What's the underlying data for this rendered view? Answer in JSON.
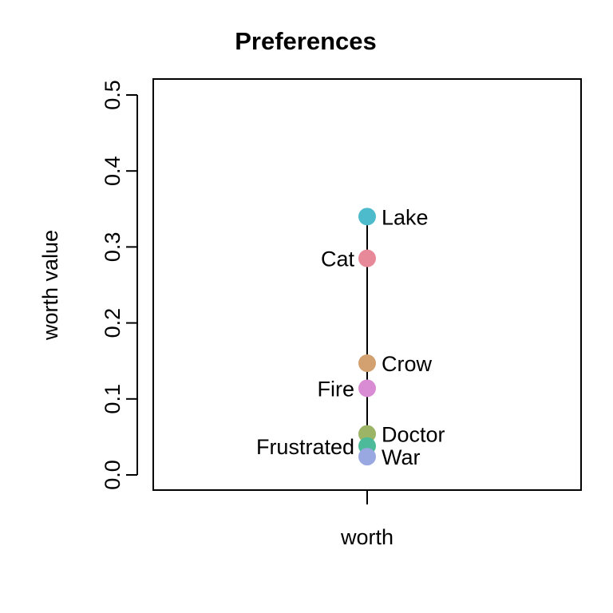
{
  "chart_data": {
    "type": "scatter",
    "title": "Preferences",
    "xlabel": "",
    "ylabel": "worth value",
    "categories": [
      "worth"
    ],
    "ylim": [
      0,
      0.5
    ],
    "yticks": [
      "0.0",
      "0.1",
      "0.2",
      "0.3",
      "0.4",
      "0.5"
    ],
    "grid": false,
    "legend": "none",
    "points": [
      {
        "label": "Lake",
        "value": 0.34,
        "color": "#4DBBCC",
        "side": "right"
      },
      {
        "label": "Cat",
        "value": 0.285,
        "color": "#E8899A",
        "side": "left"
      },
      {
        "label": "Crow",
        "value": 0.147,
        "color": "#D3A070",
        "side": "right"
      },
      {
        "label": "Fire",
        "value": 0.114,
        "color": "#D98CD3",
        "side": "left"
      },
      {
        "label": "Doctor",
        "value": 0.054,
        "color": "#9CB466",
        "side": "right"
      },
      {
        "label": "Frustrated",
        "value": 0.038,
        "color": "#4DBB9A",
        "side": "left"
      },
      {
        "label": "War",
        "value": 0.024,
        "color": "#99A8E0",
        "side": "right"
      }
    ]
  }
}
